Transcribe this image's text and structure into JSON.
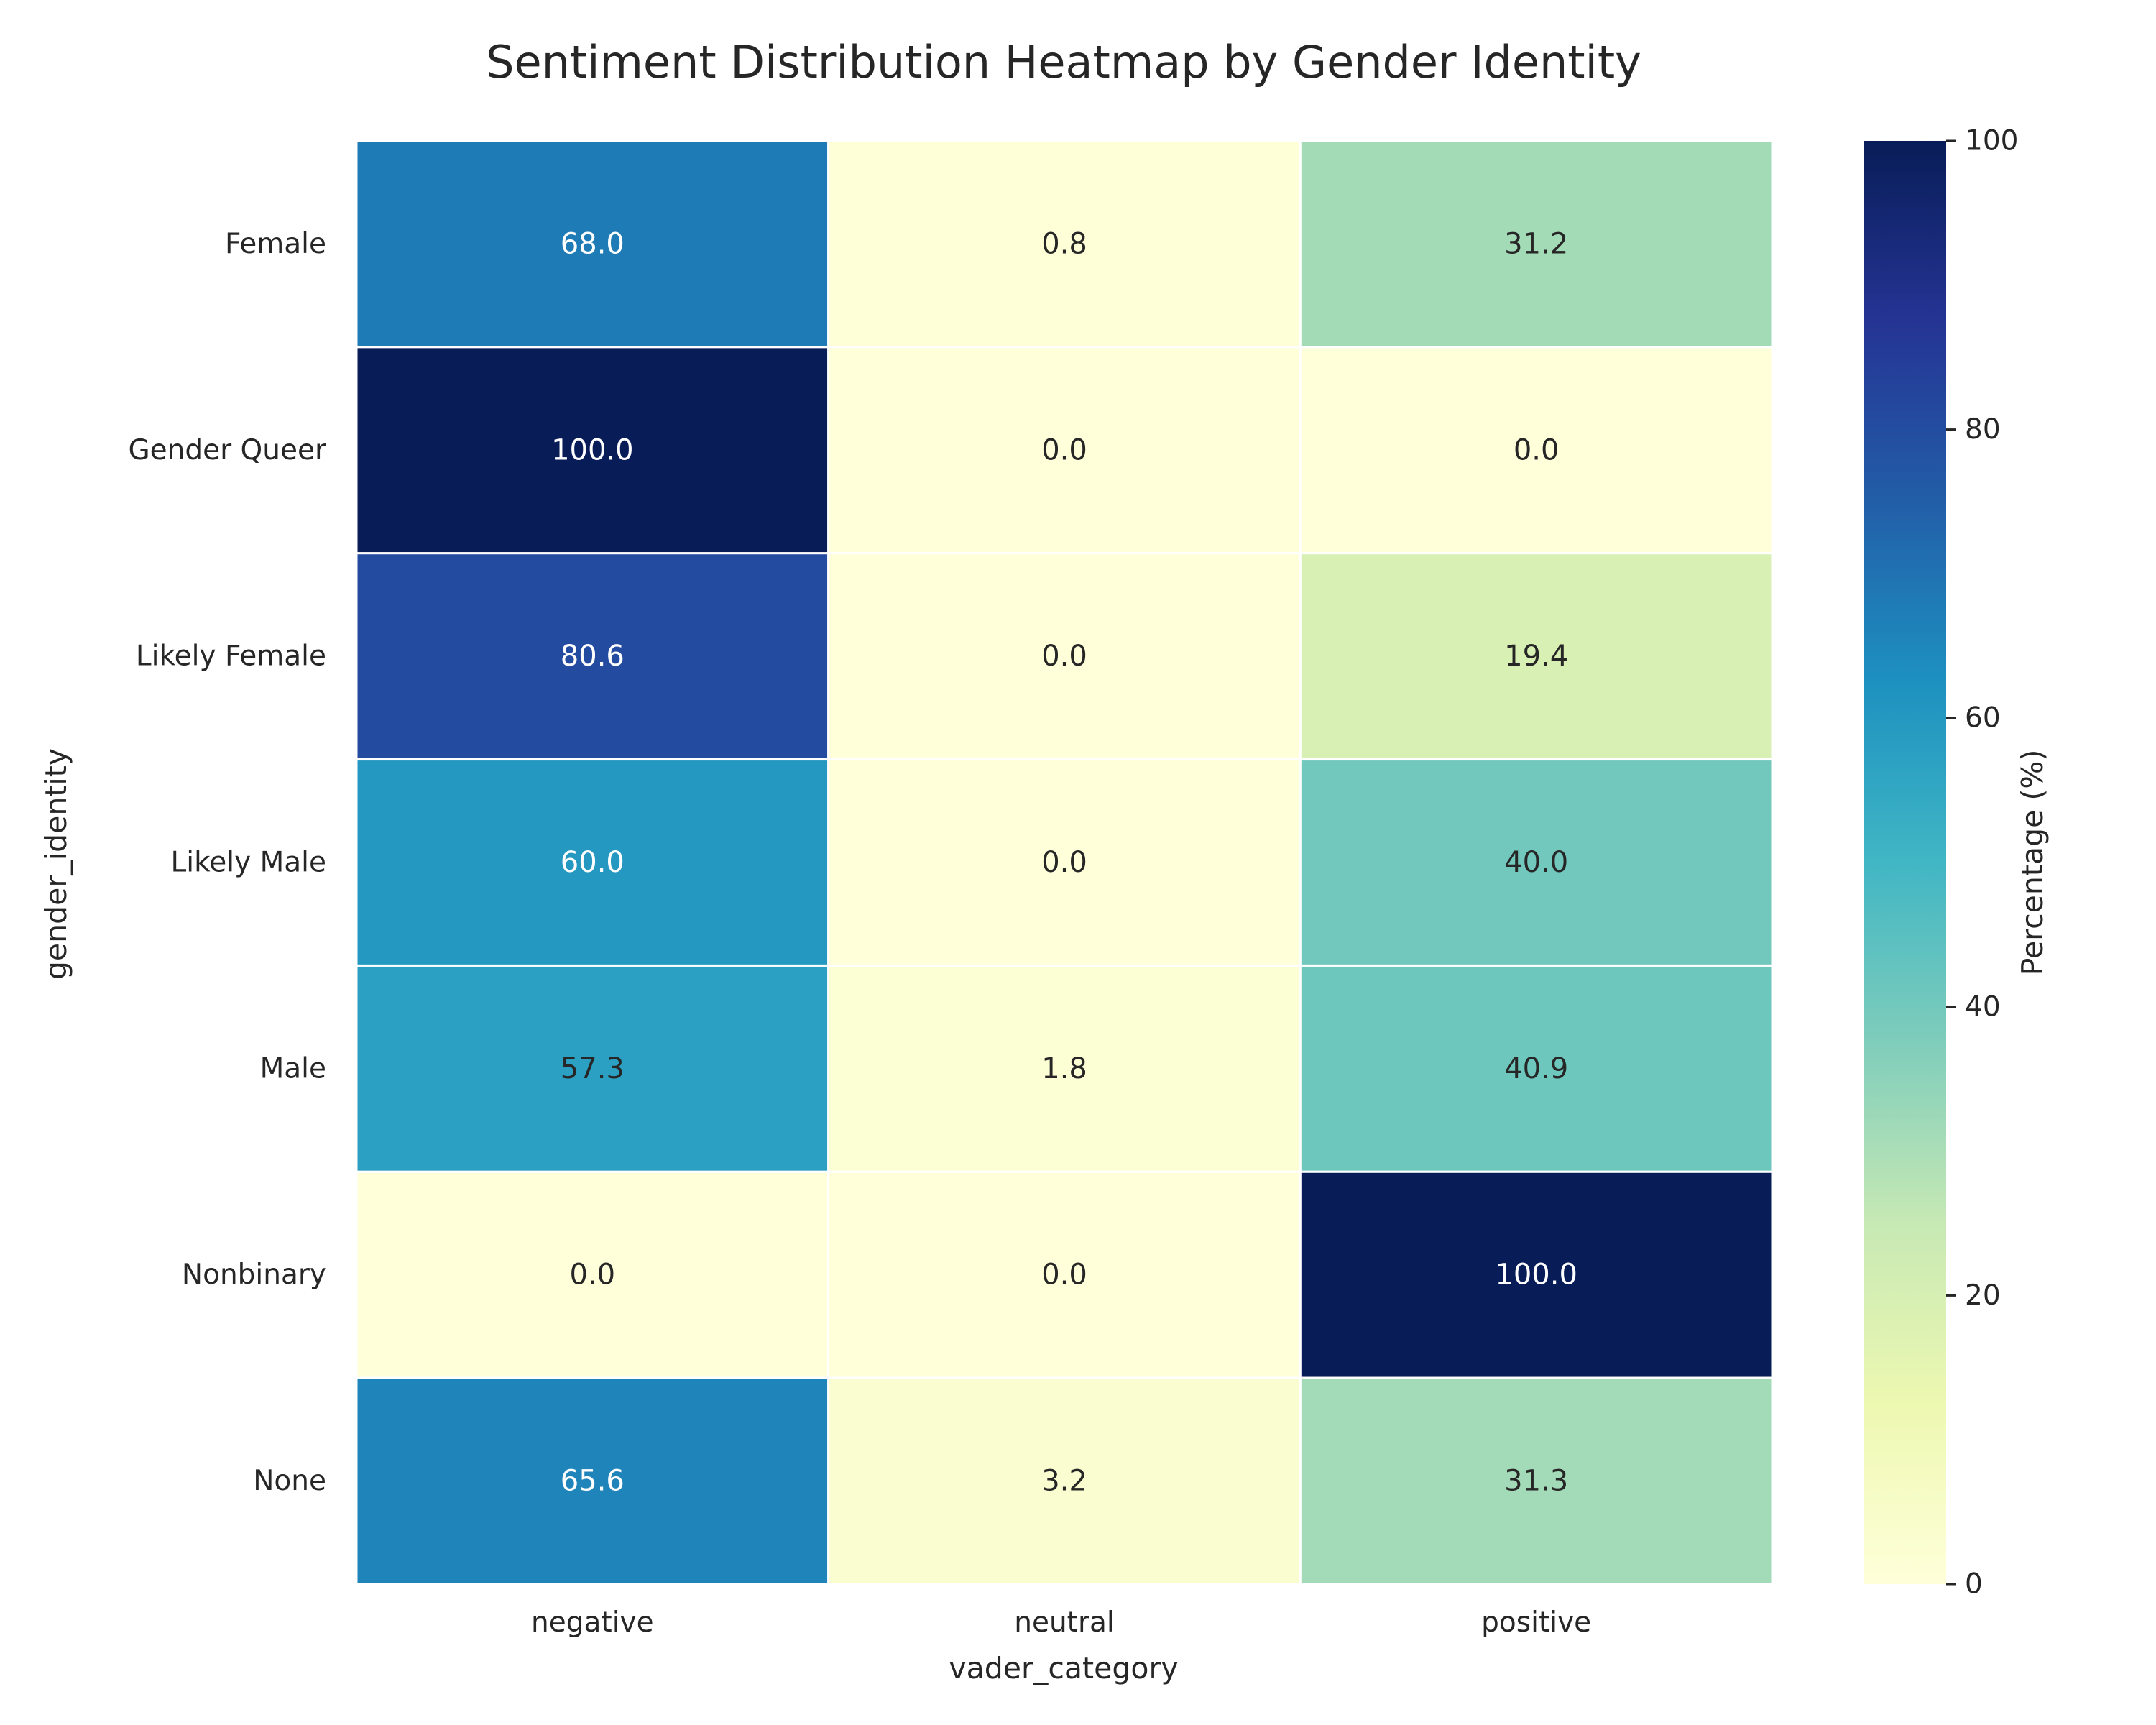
{
  "chart_data": {
    "type": "heatmap",
    "title": "Sentiment Distribution Heatmap by Gender Identity",
    "xlabel": "vader_category",
    "ylabel": "gender_identity",
    "x_categories": [
      "negative",
      "neutral",
      "positive"
    ],
    "y_categories": [
      "Female",
      "Gender Queer",
      "Likely Female",
      "Likely Male",
      "Male",
      "Nonbinary",
      "None"
    ],
    "values": [
      [
        68.0,
        0.8,
        31.2
      ],
      [
        100.0,
        0.0,
        0.0
      ],
      [
        80.6,
        0.0,
        19.4
      ],
      [
        60.0,
        0.0,
        40.0
      ],
      [
        57.3,
        1.8,
        40.9
      ],
      [
        0.0,
        0.0,
        100.0
      ],
      [
        65.6,
        3.2,
        31.3
      ]
    ],
    "value_labels": [
      [
        "68.0",
        "0.8",
        "31.2"
      ],
      [
        "100.0",
        "0.0",
        "0.0"
      ],
      [
        "80.6",
        "0.0",
        "19.4"
      ],
      [
        "60.0",
        "0.0",
        "40.0"
      ],
      [
        "57.3",
        "1.8",
        "40.9"
      ],
      [
        "0.0",
        "0.0",
        "100.0"
      ],
      [
        "65.6",
        "3.2",
        "31.3"
      ]
    ],
    "colormap": "YlGnBu",
    "vmin": 0,
    "vmax": 100,
    "colorbar": {
      "label": "Percentage (%)",
      "ticks": [
        0,
        20,
        40,
        60,
        80,
        100
      ],
      "tick_labels": [
        "0",
        "20",
        "40",
        "60",
        "80",
        "100"
      ]
    },
    "grid": false
  }
}
